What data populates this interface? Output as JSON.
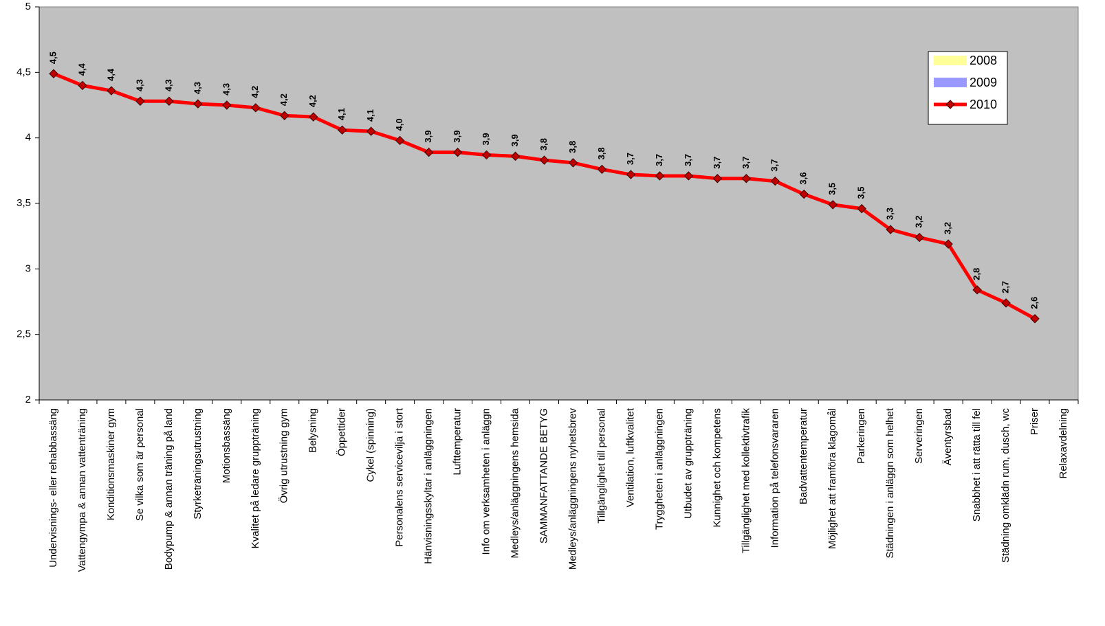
{
  "chart_data": {
    "type": "line",
    "categories": [
      "Undervisnings- eller rehabbassäng",
      "Vattengympa & annan vattenträning",
      "Konditionsmaskiner gym",
      "Se vilka som är personal",
      "Bodypump & annan träning på land",
      "Styrketräningsutrustning",
      "Motionsbassäng",
      "Kvalitet på ledare gruppträning",
      "Övrig utrustning gym",
      "Belysning",
      "Öppettider",
      "Cykel (spinning)",
      "Personalens servicevilja i stort",
      "Hänvisningsskyltar i anläggningen",
      "Lufttemperatur",
      "Info om verksamheten i anläggn",
      "Medleys/anläggningens hemsida",
      "SAMMANFATTANDE BETYG",
      "Medleys/anläggningens nyhetsbrev",
      "Tillgänglighet till personal",
      "Ventilation, luftkvalitet",
      "Tryggheten i anläggningen",
      "Utbudet av gruppträning",
      "Kunnighet och kompetens",
      "Tillgänglighet med kollektivtrafik",
      "Information på telefonsvararen",
      "Badvattentemperatur",
      "Möjlighet att framföra klagomål",
      "Parkeringen",
      "Städningen i anläggn som helhet",
      "Serveringen",
      "Äventyrsbad",
      "Snabbhet i att rätta till fel",
      "Städning omklädn rum, dusch, wc",
      "Priser",
      "Relaxavdelning"
    ],
    "series": [
      {
        "name": "2008",
        "color": "#ffff99",
        "values": [
          null,
          null,
          null,
          null,
          null,
          null,
          null,
          null,
          null,
          null,
          null,
          null,
          null,
          null,
          null,
          null,
          null,
          null,
          null,
          null,
          null,
          null,
          null,
          null,
          null,
          null,
          null,
          null,
          null,
          null,
          null,
          null,
          null,
          null,
          null,
          null
        ]
      },
      {
        "name": "2009",
        "color": "#9999ff",
        "values": [
          null,
          null,
          null,
          null,
          null,
          null,
          null,
          null,
          null,
          null,
          null,
          null,
          null,
          null,
          null,
          null,
          null,
          null,
          null,
          null,
          null,
          null,
          null,
          null,
          null,
          null,
          null,
          null,
          null,
          null,
          null,
          null,
          null,
          null,
          null,
          null
        ]
      },
      {
        "name": "2010",
        "color": "#ff0000",
        "values": [
          4.49,
          4.4,
          4.36,
          4.28,
          4.28,
          4.26,
          4.25,
          4.23,
          4.17,
          4.16,
          4.06,
          4.05,
          3.98,
          3.89,
          3.89,
          3.87,
          3.86,
          3.83,
          3.81,
          3.76,
          3.72,
          3.71,
          3.71,
          3.69,
          3.69,
          3.67,
          3.57,
          3.49,
          3.46,
          3.3,
          3.24,
          3.19,
          2.84,
          2.74,
          2.62,
          null
        ],
        "value_labels": [
          "4,5",
          "4,4",
          "4,4",
          "4,3",
          "4,3",
          "4,3",
          "4,3",
          "4,2",
          "4,2",
          "4,2",
          "4,1",
          "4,1",
          "4,0",
          "3,9",
          "3,9",
          "3,9",
          "3,9",
          "3,8",
          "3,8",
          "3,8",
          "3,7",
          "3,7",
          "3,7",
          "3,7",
          "3,7",
          "3,7",
          "3,6",
          "3,5",
          "3,5",
          "3,3",
          "3,2",
          "3,2",
          "2,8",
          "2,7",
          "2,6",
          null
        ]
      }
    ],
    "ylim": [
      2,
      5
    ],
    "yticks": [
      2,
      {
        "value": 2.5,
        "label": "2,5"
      },
      3,
      {
        "value": 3.5,
        "label": "3,5"
      },
      4,
      {
        "value": 4.5,
        "label": "4,5"
      },
      5
    ],
    "grid": false,
    "legend": "upper right"
  }
}
